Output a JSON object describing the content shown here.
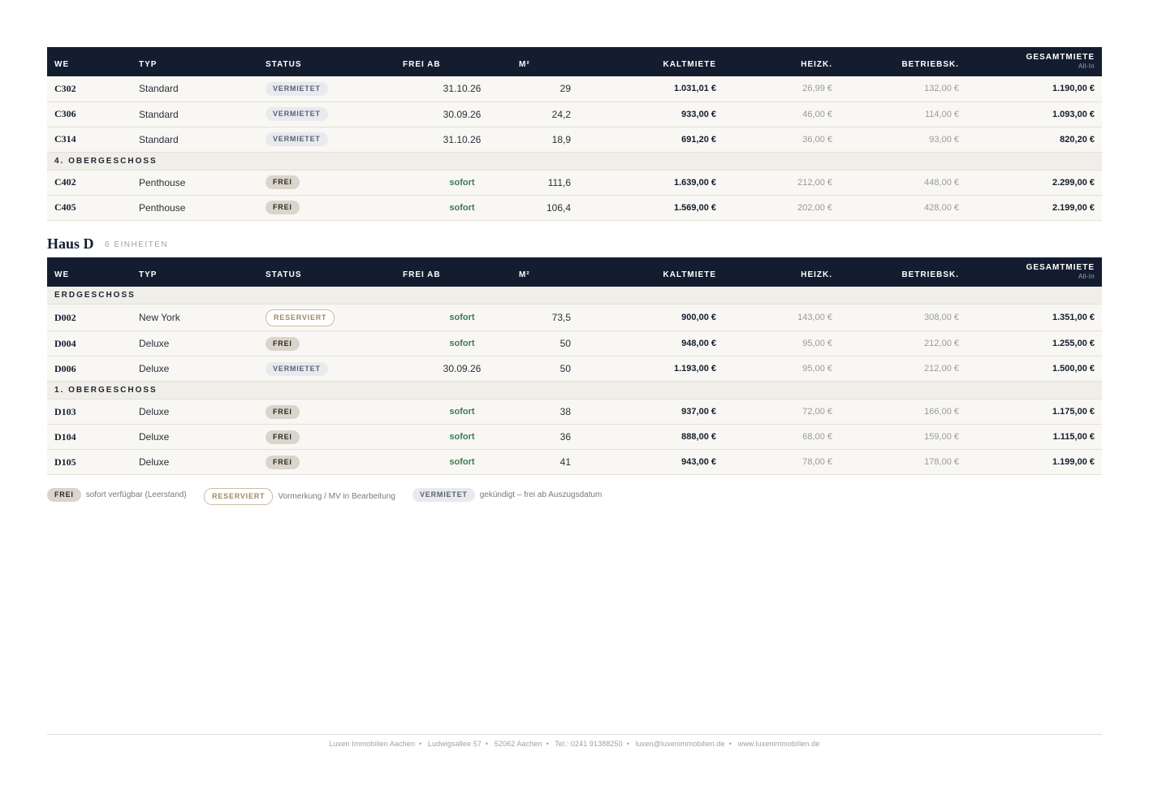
{
  "columns": {
    "we": "WE",
    "typ": "Typ",
    "status": "Status",
    "frei_ab": "Frei ab",
    "m2": "M²",
    "kaltmiete": "Kaltmiete",
    "heizk": "Heizk.",
    "betriebsk": "Betriebsk.",
    "gesamtmiete": "Gesamtmiete",
    "gesamtmiete_sub": "All-In"
  },
  "house_c": {
    "rows_top": [
      {
        "we": "C302",
        "typ": "Standard",
        "status": "VERMIETET",
        "frei_ab": "31.10.26",
        "m2": "29",
        "kalt": "1.031,01 €",
        "heiz": "26,99 €",
        "betr": "132,00 €",
        "ges": "1.190,00 €"
      },
      {
        "we": "C306",
        "typ": "Standard",
        "status": "VERMIETET",
        "frei_ab": "30.09.26",
        "m2": "24,2",
        "kalt": "933,00 €",
        "heiz": "46,00 €",
        "betr": "114,00 €",
        "ges": "1.093,00 €"
      },
      {
        "we": "C314",
        "typ": "Standard",
        "status": "VERMIETET",
        "frei_ab": "31.10.26",
        "m2": "18,9",
        "kalt": "691,20 €",
        "heiz": "36,00 €",
        "betr": "93,00 €",
        "ges": "820,20 €"
      }
    ],
    "floor_4": "4. Obergeschoss",
    "rows_4": [
      {
        "we": "C402",
        "typ": "Penthouse",
        "status": "FREI",
        "frei_ab": "sofort",
        "m2": "111,6",
        "kalt": "1.639,00 €",
        "heiz": "212,00 €",
        "betr": "448,00 €",
        "ges": "2.299,00 €"
      },
      {
        "we": "C405",
        "typ": "Penthouse",
        "status": "FREI",
        "frei_ab": "sofort",
        "m2": "106,4",
        "kalt": "1.569,00 €",
        "heiz": "202,00 €",
        "betr": "428,00 €",
        "ges": "2.199,00 €"
      }
    ]
  },
  "house_d": {
    "title": "Haus D",
    "count": "6 Einheiten",
    "floor_eg": "Erdgeschoss",
    "rows_eg": [
      {
        "we": "D002",
        "typ": "New York",
        "status": "RESERVIERT",
        "frei_ab": "sofort",
        "m2": "73,5",
        "kalt": "900,00 €",
        "heiz": "143,00 €",
        "betr": "308,00 €",
        "ges": "1.351,00 €"
      },
      {
        "we": "D004",
        "typ": "Deluxe",
        "status": "FREI",
        "frei_ab": "sofort",
        "m2": "50",
        "kalt": "948,00 €",
        "heiz": "95,00 €",
        "betr": "212,00 €",
        "ges": "1.255,00 €"
      },
      {
        "we": "D006",
        "typ": "Deluxe",
        "status": "VERMIETET",
        "frei_ab": "30.09.26",
        "m2": "50",
        "kalt": "1.193,00 €",
        "heiz": "95,00 €",
        "betr": "212,00 €",
        "ges": "1.500,00 €"
      }
    ],
    "floor_1": "1. Obergeschoss",
    "rows_1": [
      {
        "we": "D103",
        "typ": "Deluxe",
        "status": "FREI",
        "frei_ab": "sofort",
        "m2": "38",
        "kalt": "937,00 €",
        "heiz": "72,00 €",
        "betr": "166,00 €",
        "ges": "1.175,00 €"
      },
      {
        "we": "D104",
        "typ": "Deluxe",
        "status": "FREI",
        "frei_ab": "sofort",
        "m2": "36",
        "kalt": "888,00 €",
        "heiz": "68,00 €",
        "betr": "159,00 €",
        "ges": "1.115,00 €"
      },
      {
        "we": "D105",
        "typ": "Deluxe",
        "status": "FREI",
        "frei_ab": "sofort",
        "m2": "41",
        "kalt": "943,00 €",
        "heiz": "78,00 €",
        "betr": "178,00 €",
        "ges": "1.199,00 €"
      }
    ]
  },
  "legend": {
    "frei_badge": "FREI",
    "frei_text": "sofort verfügbar (Leerstand)",
    "reserviert_badge": "RESERVIERT",
    "reserviert_text": "Vormerkung / MV in Bearbeitung",
    "vermietet_badge": "VERMIETET",
    "vermietet_text": "gekündigt – frei ab Auszugsdatum"
  },
  "footer": {
    "company": "Luxen Immobilien Aachen",
    "street": "Ludwigsallee 57",
    "city": "52062 Aachen",
    "phone": "Tel.: 0241 91388250",
    "email": "luxen@luxenimmobilien.de",
    "web": "www.luxenimmobilien.de"
  }
}
